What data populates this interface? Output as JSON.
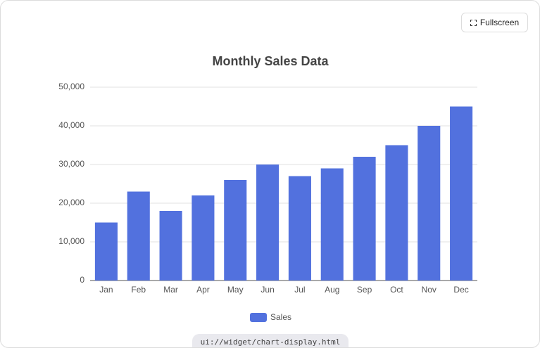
{
  "ui": {
    "button": "Fullscreen",
    "footer": "ui://widget/chart-display.html"
  },
  "chart_data": {
    "type": "bar",
    "title": "Monthly Sales Data",
    "categories": [
      "Jan",
      "Feb",
      "Mar",
      "Apr",
      "May",
      "Jun",
      "Jul",
      "Aug",
      "Sep",
      "Oct",
      "Nov",
      "Dec"
    ],
    "series": [
      {
        "name": "Sales",
        "color": "#5271de",
        "values": [
          15000,
          23000,
          18000,
          22000,
          26000,
          30000,
          27000,
          29000,
          32000,
          35000,
          40000,
          45000
        ]
      }
    ],
    "ylim": [
      0,
      50000
    ],
    "yticks": [
      0,
      {
        "value": 10000,
        "label": "10,000"
      },
      {
        "value": 20000,
        "label": "20,000"
      },
      {
        "value": 30000,
        "label": "30,000"
      },
      {
        "value": 40000,
        "label": "40,000"
      },
      {
        "value": 50000,
        "label": "50,000"
      }
    ],
    "grid": true,
    "legend": "bottom"
  }
}
